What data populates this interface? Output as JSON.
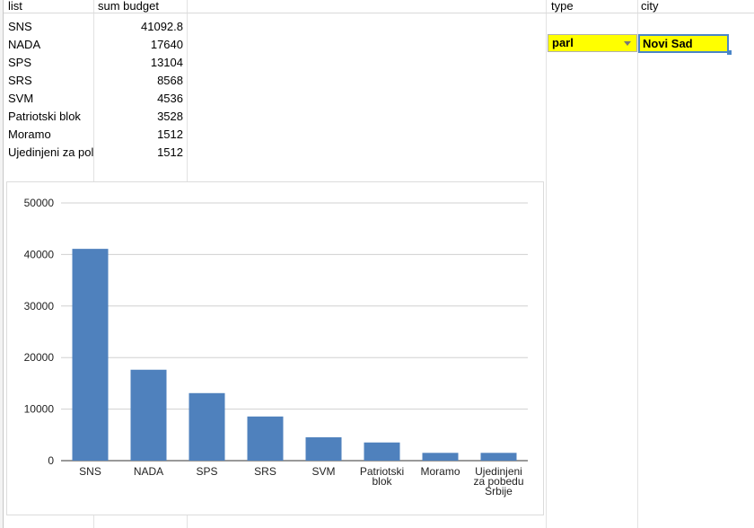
{
  "headers": {
    "list": "list",
    "sum_budget": "sum budget",
    "type": "type",
    "city": "city"
  },
  "rows": [
    {
      "list": "SNS",
      "sum_budget": "41092.8"
    },
    {
      "list": "NADA",
      "sum_budget": "17640"
    },
    {
      "list": "SPS",
      "sum_budget": "13104"
    },
    {
      "list": "SRS",
      "sum_budget": "8568"
    },
    {
      "list": "SVM",
      "sum_budget": "4536"
    },
    {
      "list": "Patriotski blok",
      "sum_budget": "3528"
    },
    {
      "list": "Moramo",
      "sum_budget": "1512"
    },
    {
      "list": "Ujedinjeni za pol",
      "sum_budget": "1512"
    }
  ],
  "filters": {
    "type_value": "parl",
    "city_value": "Novi Sad"
  },
  "colors": {
    "bar": "#4f81bd",
    "filter_cell": "#ffff00",
    "selection": "#4a86c8"
  },
  "chart_data": {
    "type": "bar",
    "categories": [
      "SNS",
      "NADA",
      "SPS",
      "SRS",
      "SVM",
      "Patriotski blok",
      "Moramo",
      "Ujedinjeni za pobedu Srbije"
    ],
    "category_lines": [
      [
        "SNS"
      ],
      [
        "NADA"
      ],
      [
        "SPS"
      ],
      [
        "SRS"
      ],
      [
        "SVM"
      ],
      [
        "Patriotski",
        "blok"
      ],
      [
        "Moramo"
      ],
      [
        "Ujedinjeni",
        "za pobedu",
        "Srbije"
      ]
    ],
    "values": [
      41092.8,
      17640,
      13104,
      8568,
      4536,
      3528,
      1512,
      1512
    ],
    "yticks": [
      "0",
      "10000",
      "20000",
      "30000",
      "40000",
      "50000"
    ],
    "ylim": [
      0,
      50000
    ],
    "title": "",
    "xlabel": "",
    "ylabel": "",
    "grid": true,
    "legend": "none"
  }
}
